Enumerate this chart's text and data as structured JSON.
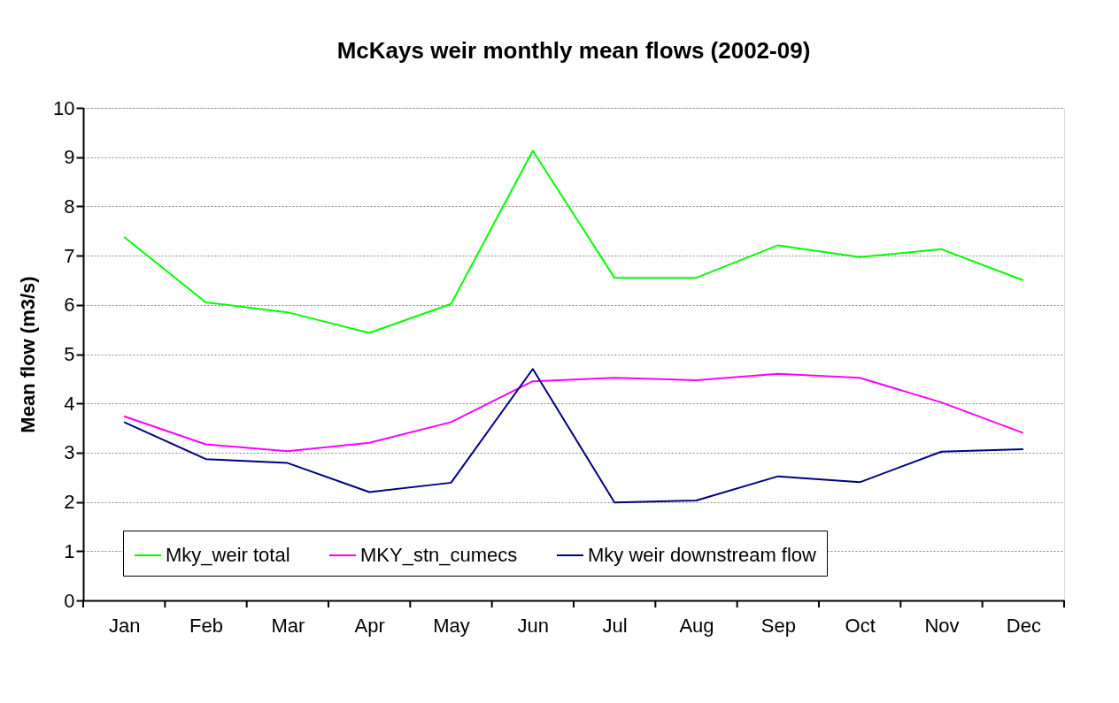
{
  "chart_data": {
    "type": "line",
    "title": "McKays weir monthly mean flows (2002-09)",
    "ylabel": "Mean flow (m3/s)",
    "categories": [
      "Jan",
      "Feb",
      "Mar",
      "Apr",
      "May",
      "Jun",
      "Jul",
      "Aug",
      "Sep",
      "Oct",
      "Nov",
      "Dec"
    ],
    "series": [
      {
        "name": "Mky_weir total",
        "color": "#00ff00",
        "values": [
          7.38,
          6.05,
          5.85,
          5.43,
          6.02,
          9.13,
          6.55,
          6.55,
          7.21,
          6.97,
          7.13,
          6.5
        ]
      },
      {
        "name": "MKY_stn_cumecs",
        "color": "#ff00ff",
        "values": [
          3.74,
          3.17,
          3.03,
          3.2,
          3.62,
          4.45,
          4.52,
          4.47,
          4.6,
          4.52,
          4.02,
          3.4
        ]
      },
      {
        "name": "Mky weir downstream flow",
        "color": "#000080",
        "values": [
          3.62,
          2.87,
          2.79,
          2.2,
          2.39,
          4.7,
          1.99,
          2.03,
          2.52,
          2.4,
          3.02,
          3.07
        ]
      }
    ],
    "ylim": [
      0,
      10
    ],
    "yticks": [
      0,
      1,
      2,
      3,
      4,
      5,
      6,
      7,
      8,
      9,
      10
    ],
    "grid": "y",
    "legend": "bottom",
    "marker": "none",
    "line_style": "solid"
  }
}
